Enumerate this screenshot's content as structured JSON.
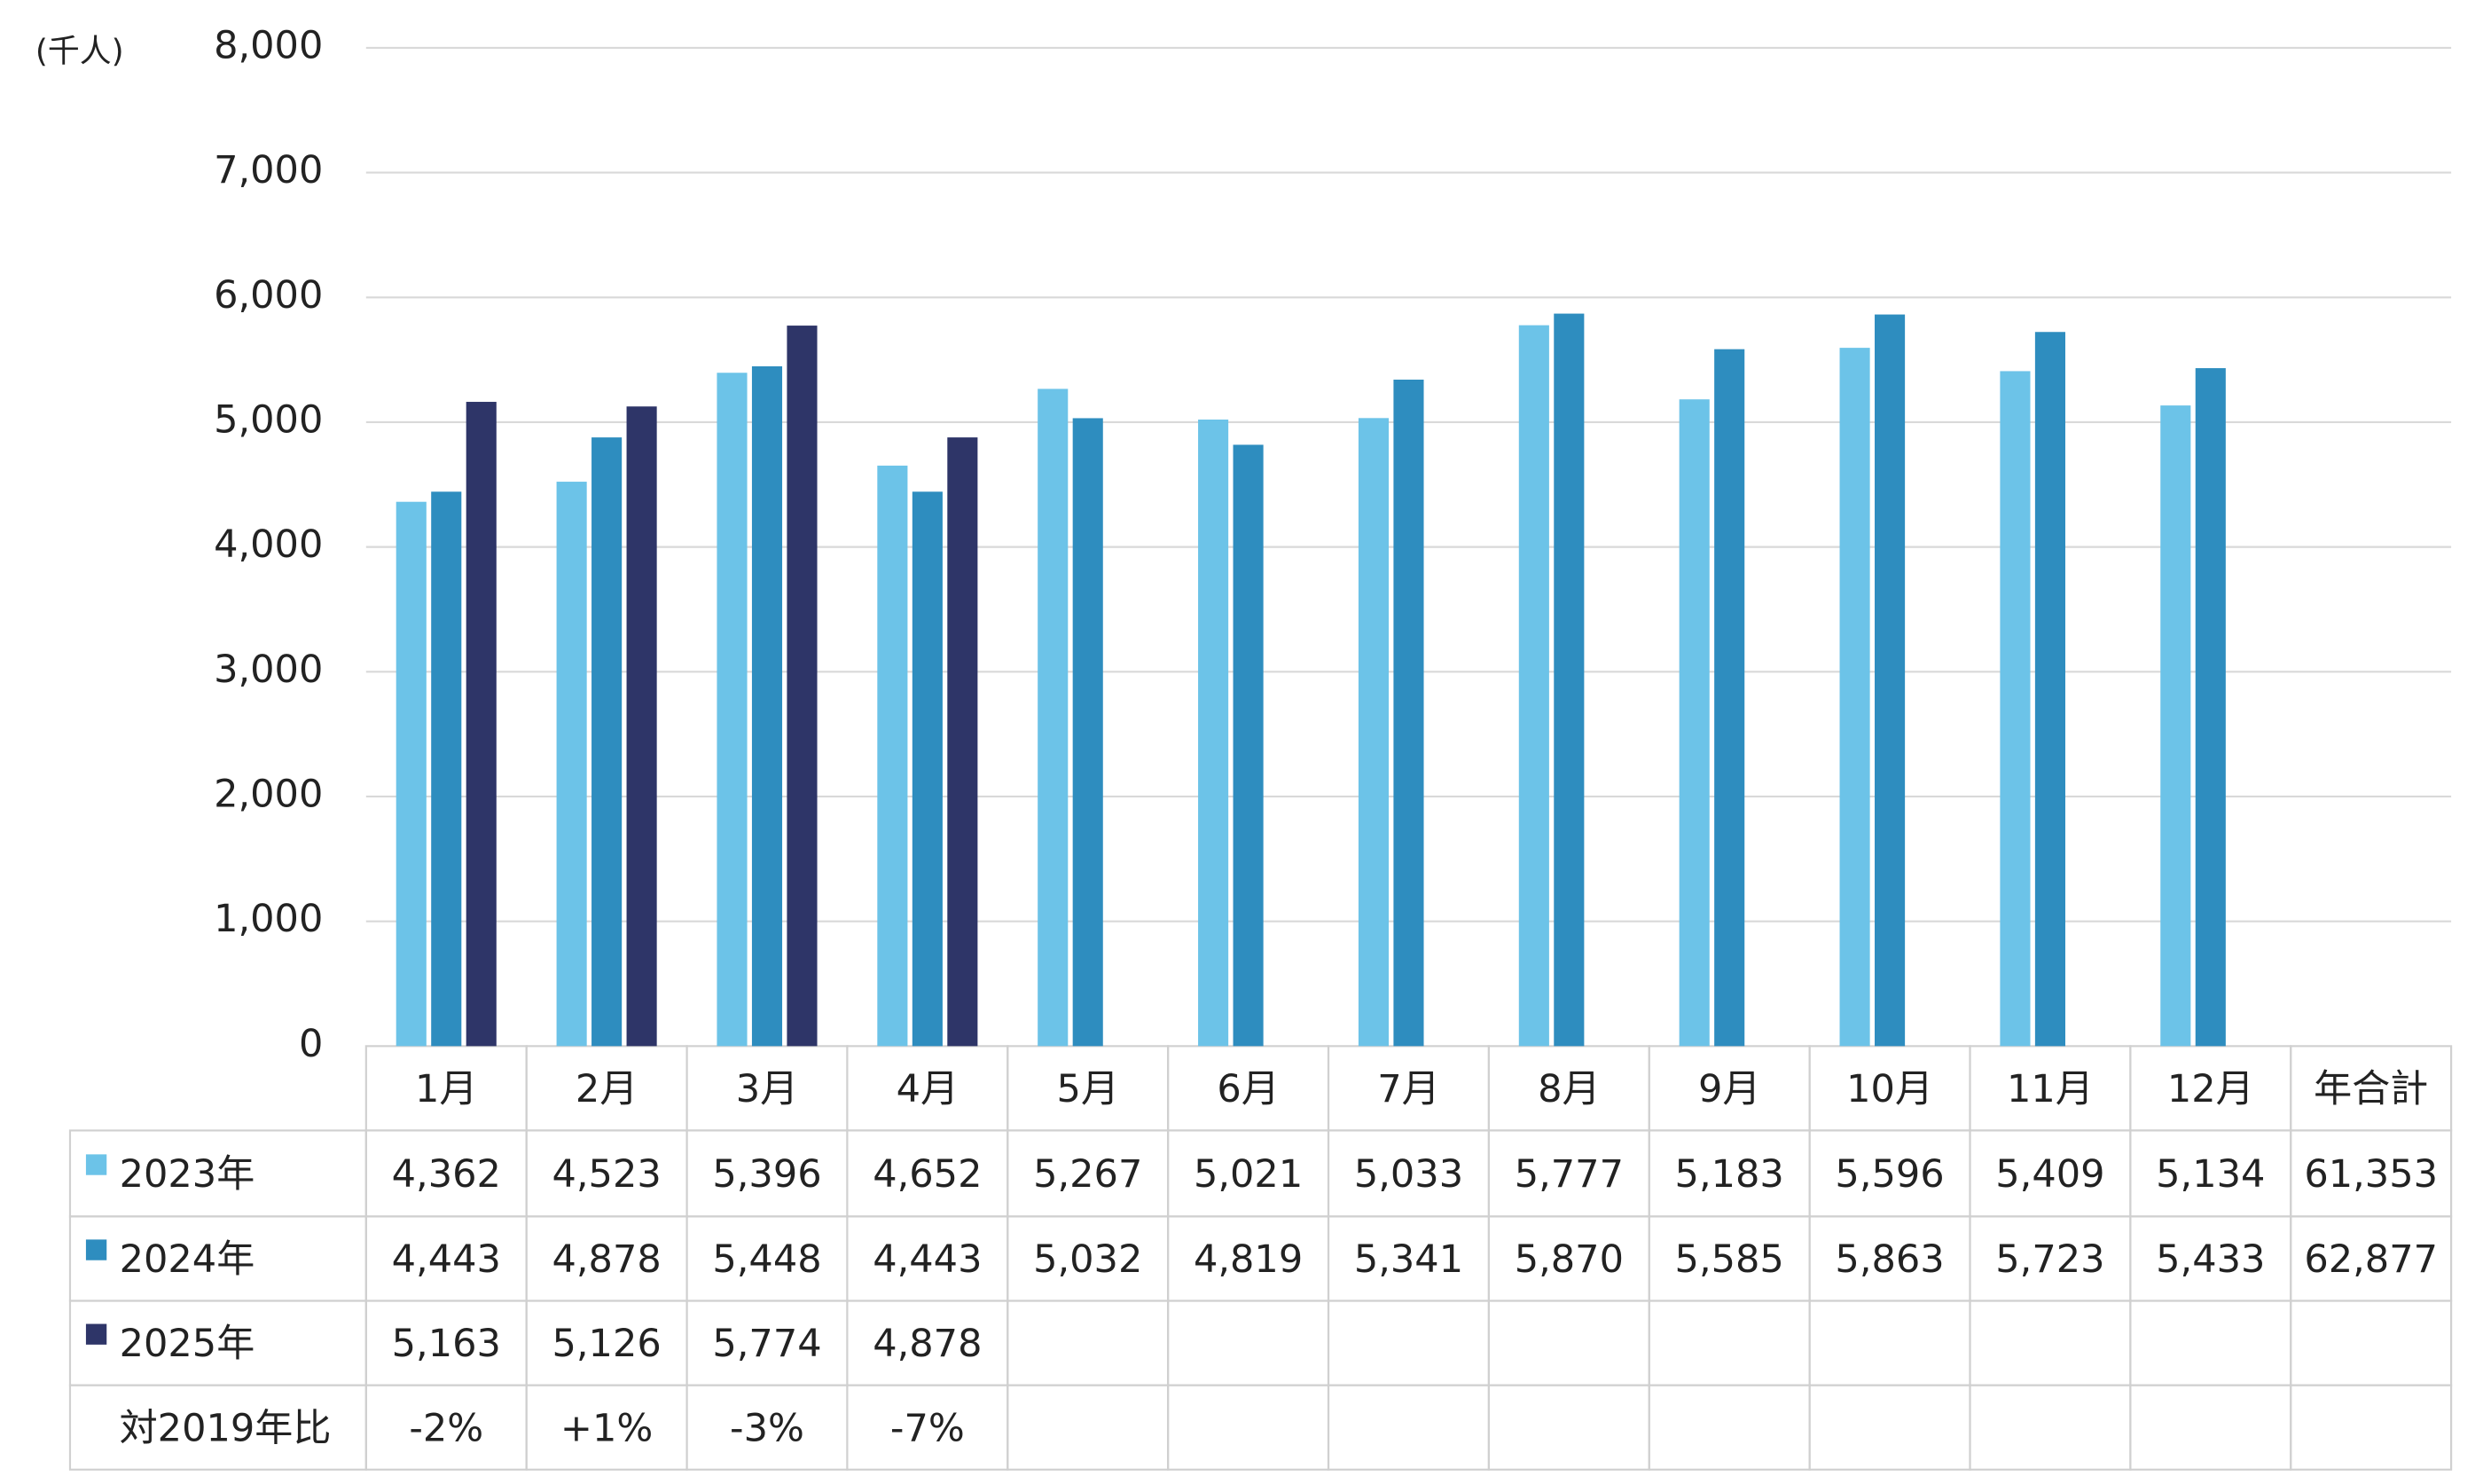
{
  "chart_data": {
    "type": "bar",
    "y_label": "(千人)",
    "categories": [
      "1月",
      "2月",
      "3月",
      "4月",
      "5月",
      "6月",
      "7月",
      "8月",
      "9月",
      "10月",
      "11月",
      "12月"
    ],
    "total_header": "年合計",
    "series": [
      {
        "name": "2023年",
        "color": "#6cc3e8",
        "values": [
          4362,
          4523,
          5396,
          4652,
          5267,
          5021,
          5033,
          5777,
          5183,
          5596,
          5409,
          5134
        ],
        "value_labels": [
          "4,362",
          "4,523",
          "5,396",
          "4,652",
          "5,267",
          "5,021",
          "5,033",
          "5,777",
          "5,183",
          "5,596",
          "5,409",
          "5,134"
        ],
        "total": 61353,
        "total_label": "61,353"
      },
      {
        "name": "2024年",
        "color": "#2e8dbf",
        "values": [
          4443,
          4878,
          5448,
          4443,
          5032,
          4819,
          5341,
          5870,
          5585,
          5863,
          5723,
          5433
        ],
        "value_labels": [
          "4,443",
          "4,878",
          "5,448",
          "4,443",
          "5,032",
          "4,819",
          "5,341",
          "5,870",
          "5,585",
          "5,863",
          "5,723",
          "5,433"
        ],
        "total": 62877,
        "total_label": "62,877"
      },
      {
        "name": "2025年",
        "color": "#2e3568",
        "values": [
          5163,
          5126,
          5774,
          4878,
          null,
          null,
          null,
          null,
          null,
          null,
          null,
          null
        ],
        "value_labels": [
          "5,163",
          "5,126",
          "5,774",
          "4,878",
          null,
          null,
          null,
          null,
          null,
          null,
          null,
          null
        ]
      }
    ],
    "comparison": {
      "name": "対2019年比",
      "values": [
        -2,
        1,
        -3,
        -7,
        null,
        null,
        null,
        null,
        null,
        null,
        null,
        null
      ],
      "value_labels": [
        "-2%",
        "+1%",
        "-3%",
        "-7%",
        null,
        null,
        null,
        null,
        null,
        null,
        null,
        null
      ]
    },
    "ylim": [
      0,
      8000
    ],
    "yticks": [
      0,
      {
        "value": 1000,
        "label": "1,000"
      },
      {
        "value": 2000,
        "label": "2,000"
      },
      {
        "value": 3000,
        "label": "3,000"
      },
      {
        "value": 4000,
        "label": "4,000"
      },
      {
        "value": 5000,
        "label": "5,000"
      },
      {
        "value": 6000,
        "label": "6,000"
      },
      {
        "value": 7000,
        "label": "7,000"
      },
      {
        "value": 8000,
        "label": "8,000"
      }
    ],
    "grid": true
  }
}
